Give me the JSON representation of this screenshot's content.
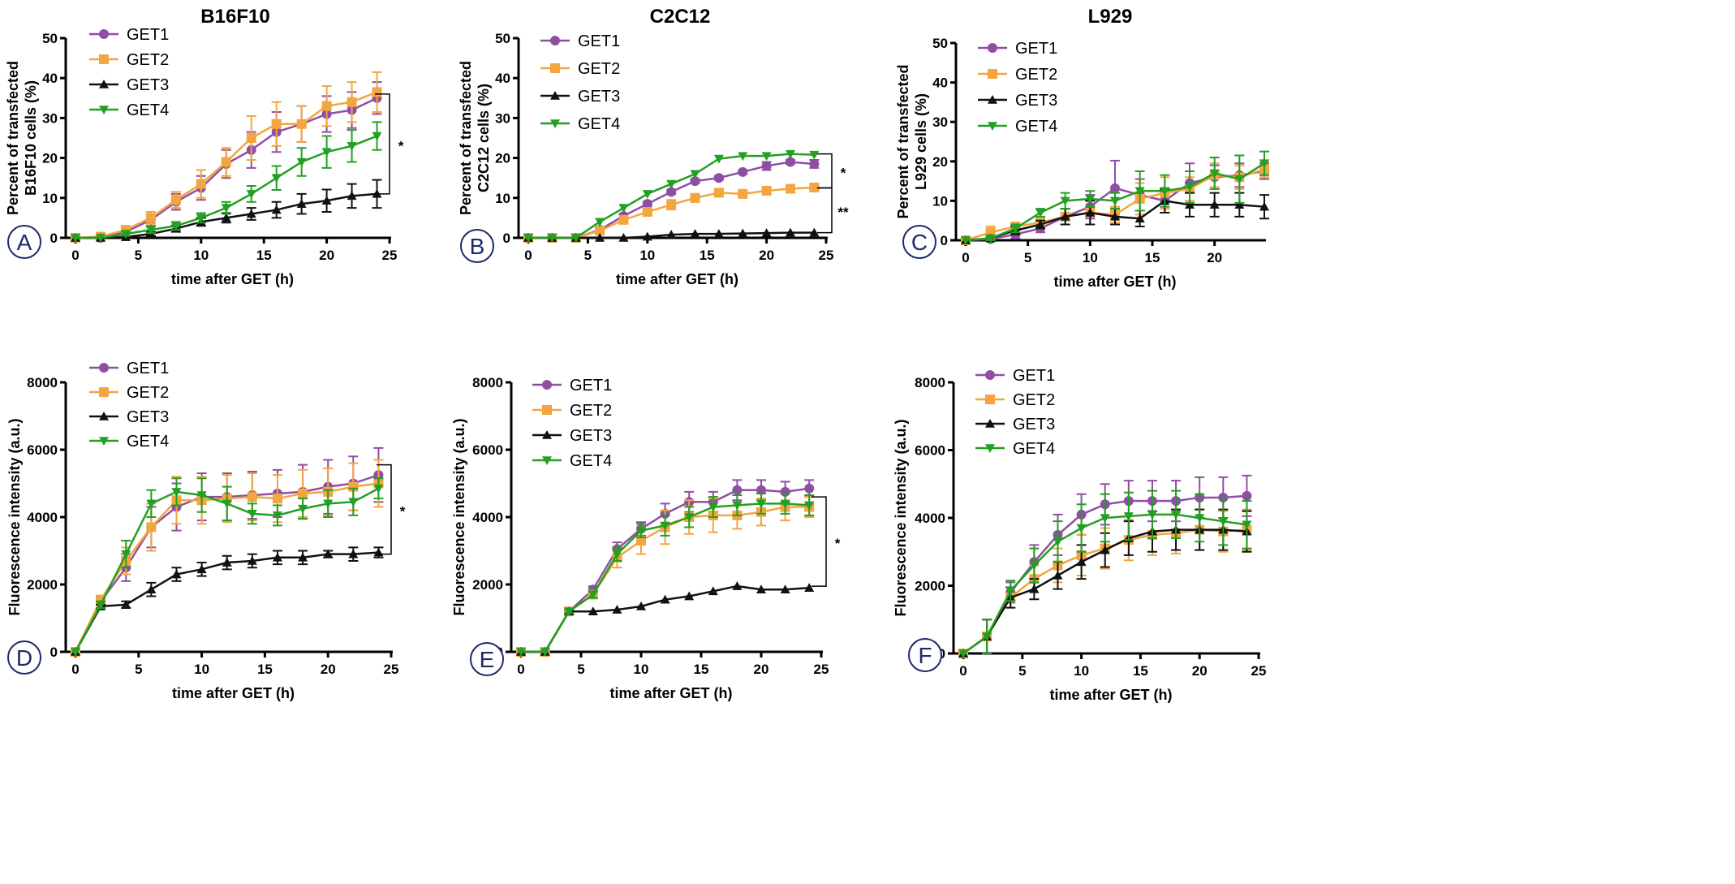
{
  "colors": {
    "GET1": "#8E4FA3",
    "GET2": "#F3A53F",
    "GET3": "#111111",
    "GET4": "#22A022",
    "letter_circle": "#1e2a6a"
  },
  "column_titles": [
    "B16F10",
    "C2C12",
    "L929"
  ],
  "chart_data": [
    {
      "panel": "A",
      "type": "line",
      "xlabel": "time after GET (h)",
      "ylabel": [
        "Percent of transfected",
        "B16F10 cells (%)"
      ],
      "xlim": [
        0,
        25
      ],
      "xticks": [
        0,
        5,
        10,
        15,
        20,
        25
      ],
      "ylim": [
        0,
        50
      ],
      "yticks": [
        0,
        10,
        20,
        30,
        40,
        50
      ],
      "x": [
        0,
        2,
        4,
        6,
        8,
        10,
        12,
        14,
        16,
        18,
        20,
        22,
        24
      ],
      "series": [
        {
          "name": "GET1",
          "marker": "circle",
          "values": [
            0,
            0,
            1.5,
            4.5,
            9,
            12.5,
            18.5,
            22,
            26.5,
            28.5,
            31,
            32,
            35
          ],
          "err": [
            0,
            0.5,
            1,
            1.5,
            2,
            3,
            3.5,
            4.5,
            5,
            4.5,
            4.5,
            4.5,
            4
          ]
        },
        {
          "name": "GET2",
          "marker": "square",
          "values": [
            0,
            0.3,
            2,
            5,
            9.5,
            13.5,
            19,
            25,
            28.5,
            28.5,
            33,
            34,
            36.5
          ],
          "err": [
            0,
            0.5,
            1,
            1.5,
            2,
            3.5,
            3.5,
            5.5,
            5.5,
            4.5,
            5,
            5,
            5
          ]
        },
        {
          "name": "GET3",
          "marker": "triangle-up",
          "values": [
            0,
            0,
            0.2,
            1,
            2.3,
            4,
            5,
            6,
            7,
            8.5,
            9.3,
            10.5,
            11
          ],
          "err": [
            0,
            0,
            0.3,
            0.5,
            0.8,
            1,
            1.2,
            1.5,
            2,
            2.5,
            2.8,
            3,
            3.5
          ]
        },
        {
          "name": "GET4",
          "marker": "triangle-down",
          "values": [
            0,
            0,
            1,
            2,
            3,
            5,
            7.5,
            11,
            15,
            19,
            21.5,
            23,
            25.5
          ],
          "err": [
            0,
            0,
            0.5,
            0.8,
            1,
            1.2,
            1.5,
            2,
            3,
            3.5,
            4,
            4,
            3.5
          ]
        }
      ],
      "brackets": [
        {
          "from": 36,
          "to": 11,
          "label": "*"
        }
      ]
    },
    {
      "panel": "B",
      "type": "line",
      "xlabel": "time after GET (h)",
      "ylabel": [
        "Percent of transfected",
        "C2C12 cells (%)"
      ],
      "xlim": [
        0,
        25
      ],
      "xticks": [
        0,
        5,
        10,
        15,
        20,
        25
      ],
      "ylim": [
        0,
        50
      ],
      "yticks": [
        0,
        10,
        20,
        30,
        40,
        50
      ],
      "x": [
        0,
        2,
        4,
        6,
        8,
        10,
        12,
        14,
        16,
        18,
        20,
        22,
        24
      ],
      "series": [
        {
          "name": "GET1",
          "marker": "circle",
          "values": [
            0,
            0,
            0,
            2,
            5.5,
            8.5,
            11.5,
            14.2,
            15,
            16.5,
            18,
            19,
            18.5
          ],
          "err": [
            0,
            0,
            0,
            0.3,
            0.5,
            0.5,
            0.5,
            0.5,
            0.5,
            0.5,
            1,
            0.5,
            1
          ]
        },
        {
          "name": "GET2",
          "marker": "square",
          "values": [
            0,
            0,
            0,
            1.8,
            4.5,
            6.5,
            8.3,
            10,
            11.3,
            11,
            11.8,
            12.3,
            12.6
          ],
          "err": [
            0,
            0,
            0,
            0.3,
            0.8,
            1,
            1.2,
            1,
            0.5,
            0.5,
            0.5,
            0.5,
            0.5
          ]
        },
        {
          "name": "GET3",
          "marker": "triangle-up",
          "values": [
            0,
            0,
            0,
            0,
            0,
            0.3,
            0.8,
            1,
            1,
            1.1,
            1.2,
            1.3,
            1.3
          ],
          "err": [
            0,
            0,
            0,
            0,
            0,
            0,
            0,
            0,
            0,
            0,
            0,
            0,
            0
          ]
        },
        {
          "name": "GET4",
          "marker": "triangle-down",
          "values": [
            0,
            0,
            0,
            4,
            7.5,
            11,
            13.5,
            16,
            19.8,
            20.5,
            20.5,
            21,
            20.8
          ],
          "err": [
            0,
            0,
            0,
            0,
            0,
            0,
            0,
            0,
            0,
            0,
            0,
            0,
            0
          ]
        }
      ],
      "brackets": [
        {
          "from": 21,
          "to": 12.5,
          "label": "*"
        },
        {
          "from": 12.5,
          "to": 1.3,
          "label": "**"
        }
      ]
    },
    {
      "panel": "C",
      "type": "line",
      "xlabel": "time after GET (h)",
      "ylabel": [
        "Percent of transfected",
        "L929 cells (%)"
      ],
      "xlim": [
        0,
        24
      ],
      "xticks": [
        0,
        5,
        10,
        15,
        20
      ],
      "ylim": [
        0,
        50
      ],
      "yticks": [
        0,
        10,
        20,
        30,
        40,
        50
      ],
      "x": [
        0,
        2,
        4,
        6,
        8,
        10,
        12,
        14,
        16,
        18,
        20,
        22,
        24
      ],
      "series": [
        {
          "name": "GET1",
          "marker": "circle",
          "values": [
            0,
            0.3,
            1.5,
            3,
            6,
            8.5,
            13.2,
            11.5,
            10,
            14.5,
            16,
            16.5,
            17.5
          ],
          "err": [
            0,
            0.5,
            1,
            1,
            2,
            3,
            7,
            4,
            3,
            5,
            3,
            3,
            2
          ]
        },
        {
          "name": "GET2",
          "marker": "square",
          "values": [
            0,
            2,
            3.5,
            4.5,
            6,
            7,
            6.5,
            10.5,
            12,
            13,
            16.5,
            16,
            18
          ],
          "err": [
            0,
            1.5,
            1,
            1,
            2,
            3,
            2,
            4,
            4,
            3,
            3,
            3,
            2
          ]
        },
        {
          "name": "GET3",
          "marker": "triangle-up",
          "values": [
            0,
            0.5,
            2.5,
            4,
            6,
            7,
            6,
            5.5,
            10,
            9,
            9,
            9,
            8.5
          ],
          "err": [
            0,
            0.5,
            1,
            1,
            2,
            3,
            2,
            2,
            3,
            3,
            3,
            3,
            3
          ]
        },
        {
          "name": "GET4",
          "marker": "triangle-down",
          "values": [
            0,
            0.5,
            3,
            7,
            10,
            10.5,
            10,
            12.5,
            12.5,
            13.5,
            17,
            15.5,
            19.5
          ],
          "err": [
            0,
            0.5,
            1,
            1,
            2,
            2,
            2,
            5,
            4,
            4,
            4,
            6,
            3
          ]
        }
      ],
      "brackets": []
    },
    {
      "panel": "D",
      "type": "line",
      "xlabel": "time after GET (h)",
      "ylabel": [
        "Fluorescence intensity (a.u.)"
      ],
      "xlim": [
        0,
        25
      ],
      "xticks": [
        0,
        5,
        10,
        15,
        20,
        25
      ],
      "ylim": [
        0,
        8000
      ],
      "yticks": [
        0,
        2000,
        4000,
        6000,
        8000
      ],
      "x": [
        0,
        2,
        4,
        6,
        8,
        10,
        12,
        14,
        16,
        18,
        20,
        22,
        24
      ],
      "series": [
        {
          "name": "GET1",
          "marker": "circle",
          "values": [
            0,
            1500,
            2500,
            3700,
            4300,
            4600,
            4600,
            4650,
            4700,
            4750,
            4900,
            5000,
            5250
          ],
          "err": [
            0,
            100,
            400,
            600,
            700,
            700,
            700,
            700,
            700,
            800,
            800,
            800,
            800
          ]
        },
        {
          "name": "GET2",
          "marker": "square",
          "values": [
            0,
            1550,
            2700,
            3700,
            4500,
            4500,
            4550,
            4600,
            4550,
            4700,
            4750,
            4900,
            5000
          ],
          "err": [
            0,
            100,
            400,
            700,
            700,
            700,
            700,
            700,
            700,
            700,
            700,
            700,
            700
          ]
        },
        {
          "name": "GET3",
          "marker": "triangle-up",
          "values": [
            0,
            1350,
            1400,
            1850,
            2300,
            2450,
            2650,
            2700,
            2800,
            2800,
            2900,
            2900,
            2950
          ],
          "err": [
            0,
            50,
            100,
            200,
            200,
            200,
            200,
            200,
            200,
            200,
            100,
            200,
            150
          ]
        },
        {
          "name": "GET4",
          "marker": "triangle-down",
          "values": [
            0,
            1400,
            2900,
            4400,
            4750,
            4650,
            4400,
            4100,
            4050,
            4250,
            4400,
            4450,
            4850
          ],
          "err": [
            0,
            100,
            400,
            400,
            400,
            500,
            500,
            300,
            300,
            300,
            400,
            400,
            300
          ]
        }
      ],
      "brackets": [
        {
          "from": 5550,
          "to": 2900,
          "label": "*"
        }
      ]
    },
    {
      "panel": "E",
      "type": "line",
      "xlabel": "time after GET (h)",
      "ylabel": [
        "Fluorescence intensity (a.u.)"
      ],
      "xlim": [
        0,
        25
      ],
      "xticks": [
        0,
        5,
        10,
        15,
        20,
        25
      ],
      "ylim": [
        0,
        8000
      ],
      "yticks": [
        0,
        2000,
        4000,
        6000,
        8000
      ],
      "x": [
        0,
        2,
        4,
        6,
        8,
        10,
        12,
        14,
        16,
        18,
        20,
        22,
        24
      ],
      "series": [
        {
          "name": "GET1",
          "marker": "circle",
          "values": [
            0,
            0,
            1200,
            1850,
            3050,
            3650,
            4100,
            4450,
            4450,
            4800,
            4800,
            4750,
            4850
          ],
          "err": [
            0,
            0,
            50,
            100,
            200,
            200,
            300,
            300,
            300,
            300,
            300,
            300,
            250
          ]
        },
        {
          "name": "GET2",
          "marker": "square",
          "values": [
            0,
            0,
            1200,
            1700,
            2800,
            3300,
            3700,
            4000,
            4050,
            4050,
            4150,
            4300,
            4300
          ],
          "err": [
            0,
            0,
            50,
            100,
            300,
            400,
            500,
            500,
            500,
            400,
            400,
            400,
            300
          ]
        },
        {
          "name": "GET3",
          "marker": "triangle-up",
          "values": [
            0,
            0,
            1200,
            1200,
            1250,
            1350,
            1550,
            1650,
            1800,
            1950,
            1850,
            1850,
            1900
          ],
          "err": [
            0,
            0,
            0,
            0,
            0,
            0,
            0,
            0,
            0,
            0,
            0,
            0,
            0
          ]
        },
        {
          "name": "GET4",
          "marker": "triangle-down",
          "values": [
            0,
            0,
            1200,
            1700,
            2900,
            3600,
            3750,
            4000,
            4300,
            4350,
            4400,
            4400,
            4350
          ],
          "err": [
            0,
            0,
            50,
            100,
            200,
            200,
            300,
            300,
            300,
            300,
            300,
            300,
            300
          ]
        }
      ],
      "brackets": [
        {
          "from": 4600,
          "to": 1950,
          "label": "*"
        }
      ]
    },
    {
      "panel": "F",
      "type": "line",
      "xlabel": "time after GET (h)",
      "ylabel": [
        "Fluorescence intensity (a.u.)"
      ],
      "xlim": [
        0,
        25
      ],
      "xticks": [
        0,
        5,
        10,
        15,
        20,
        25
      ],
      "ylim": [
        0,
        8000
      ],
      "yticks": [
        0,
        2000,
        4000,
        6000,
        8000
      ],
      "x": [
        0,
        2,
        4,
        6,
        8,
        10,
        12,
        14,
        16,
        18,
        20,
        22,
        24
      ],
      "series": [
        {
          "name": "GET1",
          "marker": "circle",
          "values": [
            0,
            500,
            1800,
            2700,
            3500,
            4100,
            4400,
            4500,
            4500,
            4500,
            4600,
            4600,
            4650
          ],
          "err": [
            0,
            500,
            300,
            500,
            600,
            600,
            600,
            600,
            600,
            600,
            600,
            600,
            600
          ]
        },
        {
          "name": "GET2",
          "marker": "square",
          "values": [
            0,
            500,
            1650,
            2200,
            2600,
            2900,
            3100,
            3350,
            3500,
            3550,
            3650,
            3600,
            3650
          ],
          "err": [
            0,
            500,
            300,
            400,
            500,
            600,
            600,
            600,
            600,
            600,
            600,
            600,
            600
          ]
        },
        {
          "name": "GET3",
          "marker": "triangle-up",
          "values": [
            0,
            500,
            1650,
            1900,
            2300,
            2700,
            3050,
            3400,
            3600,
            3650,
            3650,
            3650,
            3600
          ],
          "err": [
            0,
            500,
            300,
            300,
            400,
            500,
            500,
            500,
            600,
            600,
            600,
            600,
            600
          ]
        },
        {
          "name": "GET4",
          "marker": "triangle-down",
          "values": [
            0,
            500,
            1850,
            2600,
            3300,
            3700,
            4000,
            4050,
            4100,
            4100,
            4000,
            3900,
            3800
          ],
          "err": [
            0,
            500,
            300,
            500,
            600,
            700,
            700,
            700,
            700,
            700,
            700,
            700,
            700
          ]
        }
      ],
      "brackets": []
    }
  ]
}
